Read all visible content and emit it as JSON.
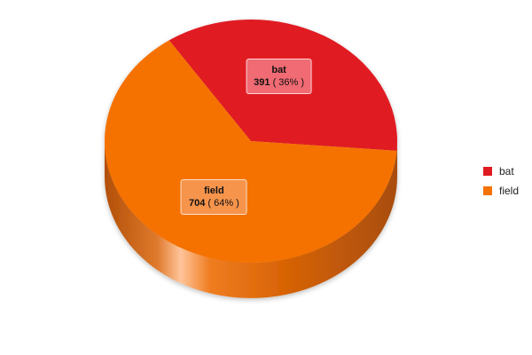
{
  "chart_data": {
    "type": "pie",
    "title": "",
    "three_d": true,
    "legend_position": "right",
    "slices": [
      {
        "name": "bat",
        "value": 391,
        "percent_label": "( 36% )",
        "color": "#e01b22"
      },
      {
        "name": "field",
        "value": 704,
        "percent_label": "( 64% )",
        "color": "#f57206"
      }
    ]
  }
}
